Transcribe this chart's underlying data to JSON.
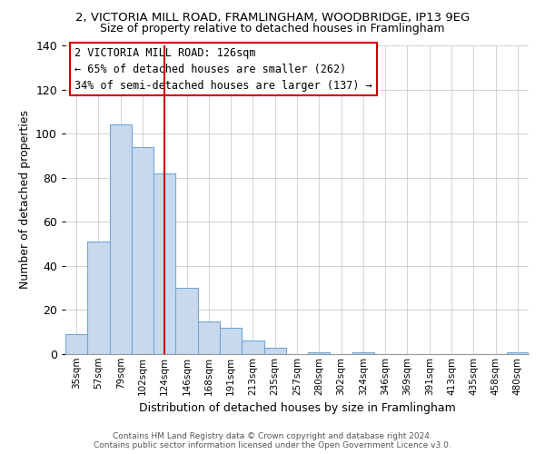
{
  "title_line1": "2, VICTORIA MILL ROAD, FRAMLINGHAM, WOODBRIDGE, IP13 9EG",
  "title_line2": "Size of property relative to detached houses in Framlingham",
  "xlabel": "Distribution of detached houses by size in Framlingham",
  "ylabel": "Number of detached properties",
  "bar_labels": [
    "35sqm",
    "57sqm",
    "79sqm",
    "102sqm",
    "124sqm",
    "146sqm",
    "168sqm",
    "191sqm",
    "213sqm",
    "235sqm",
    "257sqm",
    "280sqm",
    "302sqm",
    "324sqm",
    "346sqm",
    "369sqm",
    "391sqm",
    "413sqm",
    "435sqm",
    "458sqm",
    "480sqm"
  ],
  "bar_values": [
    9,
    51,
    104,
    94,
    82,
    30,
    15,
    12,
    6,
    3,
    0,
    1,
    0,
    1,
    0,
    0,
    0,
    0,
    0,
    0,
    1
  ],
  "bar_color": "#c8d9ee",
  "bar_edge_color": "#6fa8d4",
  "vline_x": 4,
  "vline_color": "#cc0000",
  "ylim": [
    0,
    140
  ],
  "yticks": [
    0,
    20,
    40,
    60,
    80,
    100,
    120,
    140
  ],
  "annotation_title": "2 VICTORIA MILL ROAD: 126sqm",
  "annotation_line1": "← 65% of detached houses are smaller (262)",
  "annotation_line2": "34% of semi-detached houses are larger (137) →",
  "annotation_box_color": "#ffffff",
  "annotation_box_edge": "#cc0000",
  "footer_line1": "Contains HM Land Registry data © Crown copyright and database right 2024.",
  "footer_line2": "Contains public sector information licensed under the Open Government Licence v3.0.",
  "bg_color": "#ffffff",
  "grid_color": "#cccccc"
}
